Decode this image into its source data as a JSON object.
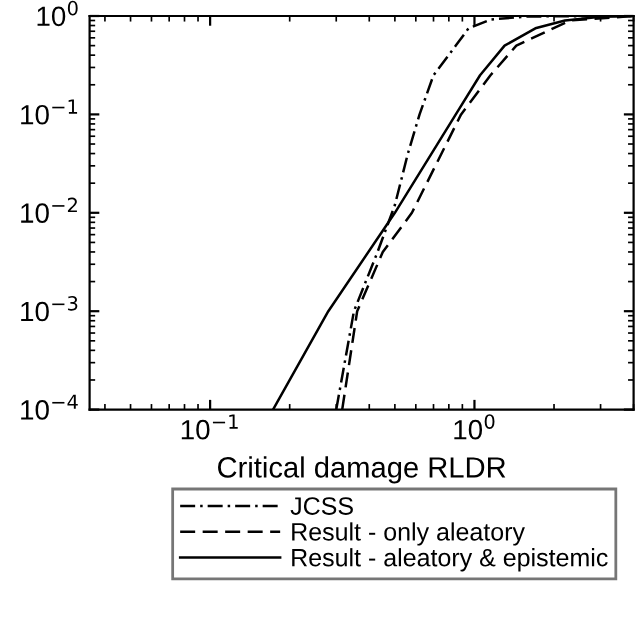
{
  "chart_data": {
    "type": "line",
    "xlabel": "Critical damage RLDR",
    "log": "xy",
    "xlim": [
      0.035,
      4
    ],
    "ylim": [
      0.0001,
      1
    ],
    "xticks": [
      {
        "value": 0.1,
        "label": "10$^{−1}$"
      },
      {
        "value": 1,
        "label": "10$^{0}$"
      }
    ],
    "yticks": [
      {
        "value": 0.0001,
        "label": "10$^{−4}$"
      },
      {
        "value": 0.001,
        "label": "10$^{−3}$"
      },
      {
        "value": 0.01,
        "label": "10$^{−2}$"
      },
      {
        "value": 0.1,
        "label": "10$^{−1}$"
      },
      {
        "value": 1,
        "label": "10$^{0}$"
      }
    ],
    "legend": "bottom",
    "grid": false,
    "series": [
      {
        "name": "JCSS",
        "color": "#000000",
        "line_style": "dashdot",
        "x": [
          0.3,
          0.35,
          0.43,
          0.5,
          0.56,
          0.62,
          0.7,
          0.85,
          0.95,
          1.15,
          1.6,
          4
        ],
        "values": [
          0.0001,
          0.001,
          0.004,
          0.012,
          0.04,
          0.1,
          0.25,
          0.5,
          0.75,
          0.92,
          0.99,
          1
        ]
      },
      {
        "name": "Result - only aleatory",
        "color": "#000000",
        "line_style": "dashed",
        "x": [
          0.316,
          0.36,
          0.45,
          0.58,
          0.89,
          1.15,
          1.44,
          2.3,
          4
        ],
        "values": [
          0.0001,
          0.001,
          0.004,
          0.01,
          0.1,
          0.25,
          0.5,
          0.9,
          1
        ]
      },
      {
        "name": "Result - aleatory & epistemic",
        "color": "#000000",
        "line_style": "solid",
        "x": [
          0.173,
          0.28,
          0.5,
          0.85,
          1.05,
          1.3,
          1.7,
          2.2,
          3,
          4
        ],
        "values": [
          0.0001,
          0.001,
          0.01,
          0.1,
          0.25,
          0.5,
          0.75,
          0.9,
          0.98,
          1
        ]
      }
    ]
  }
}
